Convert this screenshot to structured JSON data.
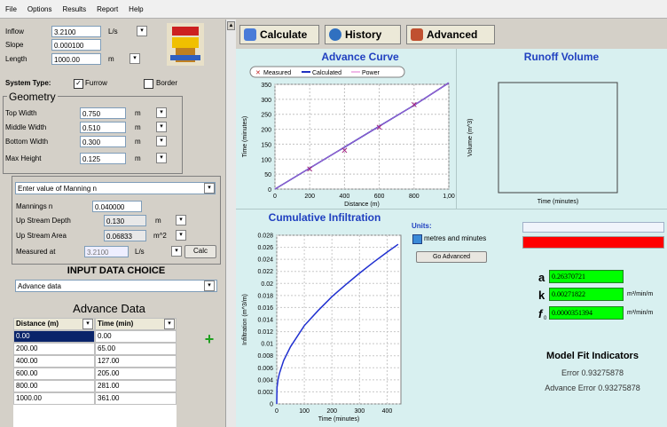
{
  "menu": [
    "File",
    "Options",
    "Results",
    "Report",
    "Help"
  ],
  "inflow": {
    "label": "Inflow",
    "value": "3.2100",
    "unit": "L/s"
  },
  "slope": {
    "label": "Slope",
    "value": "0.000100"
  },
  "length": {
    "label": "Length",
    "value": "1000.00",
    "unit": "m"
  },
  "system_type": {
    "label": "System Type:",
    "furrow": "Furrow",
    "border": "Border",
    "furrow_checked": true,
    "border_checked": false
  },
  "geometry": {
    "title": "Geometry",
    "fields": [
      {
        "label": "Top Width",
        "value": "0.750",
        "unit": "m"
      },
      {
        "label": "Middle Width",
        "value": "0.510",
        "unit": "m"
      },
      {
        "label": "Bottom Width",
        "value": "0.300",
        "unit": "m"
      },
      {
        "label": "Max Height",
        "value": "0.125",
        "unit": "m"
      }
    ]
  },
  "manning": {
    "select": "Enter value of Manning n",
    "mannings_label": "Mannings n",
    "mannings_value": "0.040000",
    "upstream_depth_label": "Up Stream Depth",
    "upstream_depth_value": "0.130",
    "upstream_depth_unit": "m",
    "upstream_area_label": "Up Stream Area",
    "upstream_area_value": "0.06833",
    "upstream_area_unit": "m^2",
    "measured_label": "Measured at",
    "measured_value": "3.2100",
    "measured_unit": "L/s",
    "calc": "Calc"
  },
  "input_choice": {
    "title": "INPUT DATA CHOICE",
    "value": "Advance data"
  },
  "advance_data": {
    "title": "Advance Data",
    "col_distance": "Distance (m)",
    "col_time": "Time (min)",
    "rows": [
      [
        "0.00",
        "0.00"
      ],
      [
        "200.00",
        "65.00"
      ],
      [
        "400.00",
        "127.00"
      ],
      [
        "600.00",
        "205.00"
      ],
      [
        "800.00",
        "281.00"
      ],
      [
        "1000.00",
        "361.00"
      ]
    ]
  },
  "tabs": {
    "calculate": "Calculate",
    "history": "History",
    "advanced": "Advanced"
  },
  "units": {
    "label": "Units:",
    "option": "metres and minutes",
    "go_advanced": "Go Advanced"
  },
  "results": {
    "a_label": "a",
    "a_value": "0.26370721",
    "k_label": "k",
    "k_value": "0.00271822",
    "k_unit": "m³/min/m",
    "f0_label": "f",
    "f0_sub": "0",
    "f0_value": "0.0000351394",
    "f0_unit": "m³/min/m",
    "fit_title": "Model Fit Indicators",
    "error_text": "Error 0.93275878",
    "advance_error_text": "Advance Error  0.93275878"
  },
  "colors": {
    "accent_blue": "#2040c0",
    "results_green": "#00ff00",
    "progress_red": "#ff0000",
    "chart_bg": "#d8f0f0"
  },
  "chart_data": [
    {
      "type": "line",
      "title": "Advance Curve",
      "xlabel": "Distance (m)",
      "ylabel": "Time (minutes)",
      "xlim": [
        0,
        1000
      ],
      "ylim": [
        0,
        350
      ],
      "xticks": [
        "0",
        "200",
        "400",
        "600",
        "800",
        "1,00"
      ],
      "yticks": [
        "0",
        "50",
        "100",
        "150",
        "200",
        "250",
        "300",
        "350"
      ],
      "legend": [
        "Measured",
        "Calculated",
        "Power"
      ],
      "legend_placement": "top",
      "series": [
        {
          "name": "Measured",
          "x": [
            200,
            400,
            600,
            800
          ],
          "y": [
            65,
            127,
            205,
            281
          ]
        },
        {
          "name": "Calculated",
          "x": [
            0,
            200,
            400,
            600,
            800,
            1000
          ],
          "y": [
            0,
            70,
            140,
            210,
            280,
            355
          ]
        }
      ],
      "grid": true
    },
    {
      "type": "line",
      "title": "Runoff Volume",
      "xlabel": "Time (minutes)",
      "ylabel": "Volume (m^3)",
      "series": []
    },
    {
      "type": "line",
      "title": "Cumulative Infiltration",
      "xlabel": "Time (minutes)",
      "ylabel": "Infiltration (m^3/m)",
      "xlim": [
        0,
        450
      ],
      "ylim": [
        0,
        0.028
      ],
      "xticks": [
        "0",
        "100",
        "200",
        "300",
        "400"
      ],
      "yticks": [
        "0",
        "0.002",
        "0.004",
        "0.006",
        "0.008",
        "0.01",
        "0.012",
        "0.014",
        "0.016",
        "0.018",
        "0.02",
        "0.022",
        "0.024",
        "0.026",
        "0.028"
      ],
      "series": [
        {
          "name": "Infiltration",
          "x": [
            0,
            1,
            5,
            10,
            25,
            50,
            100,
            150,
            200,
            250,
            300,
            350,
            400,
            440
          ],
          "y": [
            0,
            0.0027,
            0.0041,
            0.0051,
            0.0072,
            0.0095,
            0.013,
            0.0155,
            0.0178,
            0.0198,
            0.0217,
            0.0235,
            0.0252,
            0.0265
          ]
        }
      ],
      "grid": true
    }
  ]
}
